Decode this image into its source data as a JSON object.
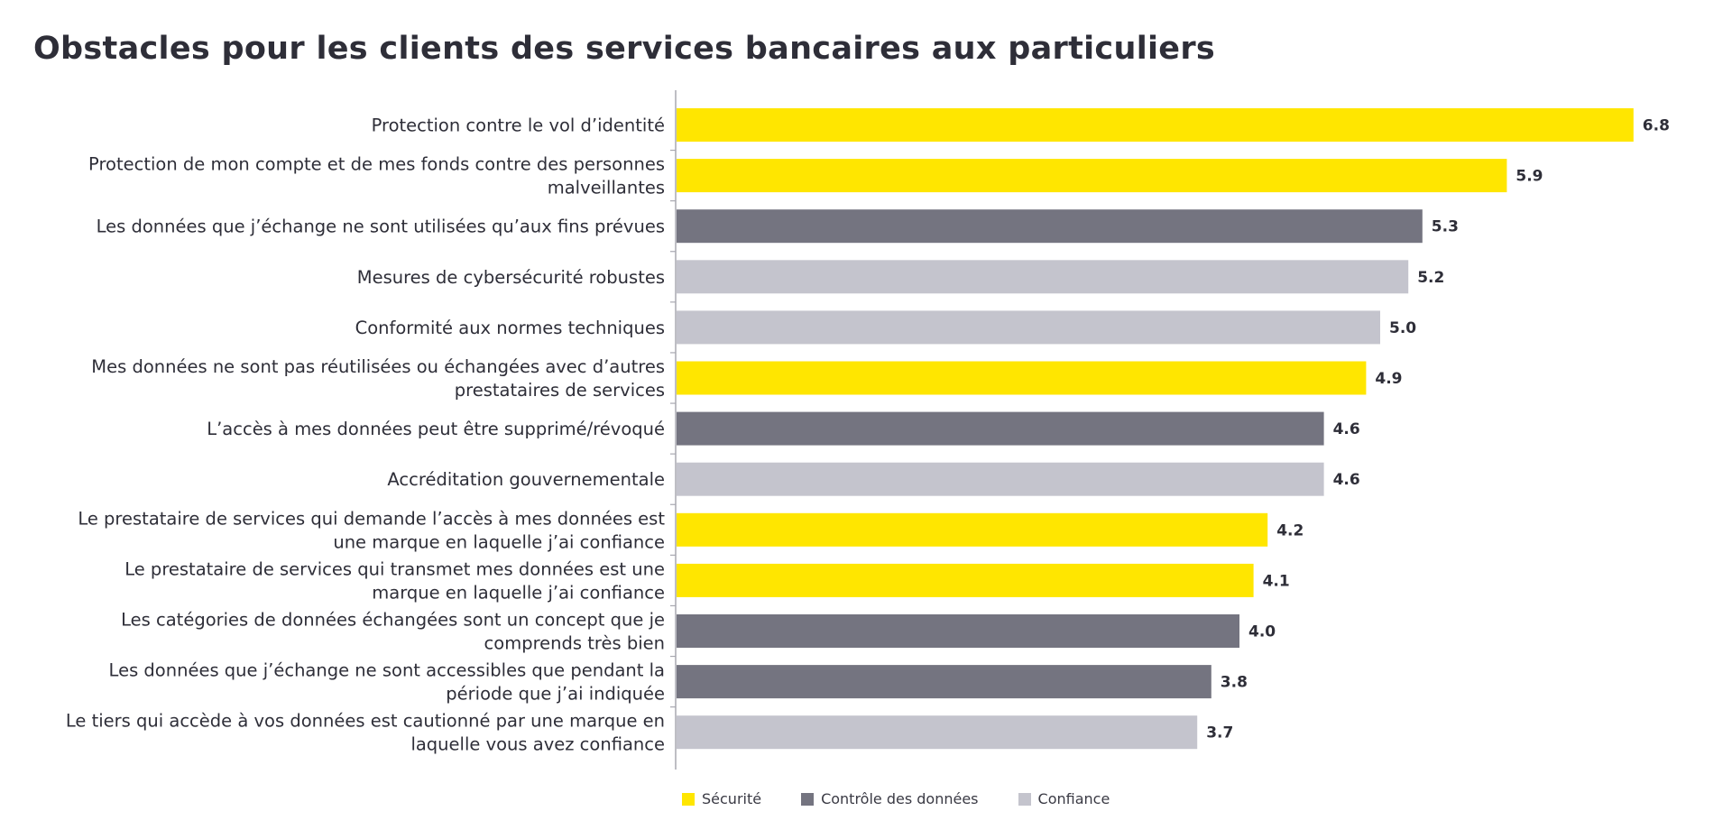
{
  "chart_data": {
    "type": "bar",
    "orientation": "horizontal",
    "title": "Obstacles pour les clients des services bancaires aux particuliers",
    "xlabel": "",
    "ylabel": "",
    "xlim": [
      0,
      7
    ],
    "grid": false,
    "legend_position": "bottom",
    "series_colors": {
      "Sécurité": "#ffe600",
      "Contrôle des données": "#747480",
      "Confiance": "#c4c4cd"
    },
    "legend": [
      {
        "name": "Sécurité",
        "color": "#ffe600"
      },
      {
        "name": "Contrôle des données",
        "color": "#747480"
      },
      {
        "name": "Confiance",
        "color": "#c4c4cd"
      }
    ],
    "categories": [
      [
        "Protection contre le vol d’identité"
      ],
      [
        "Protection de mon compte et de mes fonds contre des personnes",
        "malveillantes"
      ],
      [
        "Les données que j’échange ne sont utilisées qu’aux fins prévues"
      ],
      [
        "Mesures de cybersécurité robustes"
      ],
      [
        "Conformité aux normes techniques"
      ],
      [
        "Mes données ne sont pas réutilisées ou échangées avec d’autres",
        "prestataires de services"
      ],
      [
        "L’accès à mes données peut être supprimé/révoqué"
      ],
      [
        "Accréditation gouvernementale"
      ],
      [
        "Le prestataire de services qui demande l’accès à mes données est",
        "une marque en laquelle j’ai confiance"
      ],
      [
        "Le prestataire de services qui transmet mes données est une",
        "marque en laquelle j’ai confiance"
      ],
      [
        "Les catégories de données échangées sont un concept que je",
        "comprends très bien"
      ],
      [
        "Les données que j’échange ne sont accessibles que pendant la",
        "période que j’ai indiquée"
      ],
      [
        "Le tiers qui accède à vos données est cautionné par une marque en",
        "laquelle vous avez confiance"
      ]
    ],
    "values": [
      6.8,
      5.9,
      5.3,
      5.2,
      5.0,
      4.9,
      4.6,
      4.6,
      4.2,
      4.1,
      4.0,
      3.8,
      3.7
    ],
    "value_labels": [
      "6.8",
      "5.9",
      "5.3",
      "5.2",
      "5.0",
      "4.9",
      "4.6",
      "4.6",
      "4.2",
      "4.1",
      "4.0",
      "3.8",
      "3.7"
    ],
    "series_of_bar": [
      "Sécurité",
      "Sécurité",
      "Contrôle des données",
      "Confiance",
      "Confiance",
      "Sécurité",
      "Contrôle des données",
      "Confiance",
      "Sécurité",
      "Sécurité",
      "Contrôle des données",
      "Contrôle des données",
      "Confiance"
    ]
  }
}
